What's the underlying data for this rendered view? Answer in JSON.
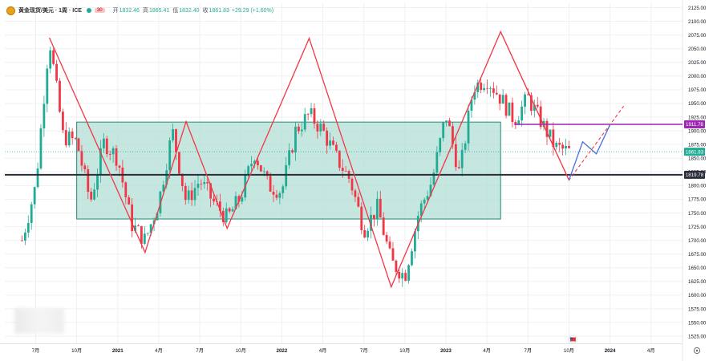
{
  "legend": {
    "symbol_icon": "gold-coin-icon",
    "title": "黄金现货/美元 · 1周 · ICE",
    "badge": "30",
    "open_label": "开",
    "open_value": "1832.46",
    "high_label": "高",
    "high_value": "1865.41",
    "low_label": "低",
    "low_value": "1832.40",
    "close_label": "收",
    "close_value": "1861.83",
    "change": "+29.29 (+1.60%)"
  },
  "colors": {
    "up": "#22ab94",
    "down": "#f23645",
    "zigzag": "#f23645",
    "box_fill": "#b2dfd6",
    "box_stroke": "#1e8c77",
    "purple": "#9c27b0",
    "dark_line": "#2a2e39",
    "projection": "#4a6ee0"
  },
  "chart_data": {
    "type": "candlestick",
    "symbol": "黄金现货/美元",
    "timeframe": "1周",
    "y_ticks": [
      "2125.00",
      "2100.00",
      "2075.00",
      "2050.00",
      "2025.00",
      "2000.00",
      "1975.00",
      "1950.00",
      "1925.00",
      "1900.00",
      "1875.00",
      "1850.00",
      "1825.00",
      "1800.00",
      "1775.00",
      "1750.00",
      "1725.00",
      "1700.00",
      "1675.00",
      "1650.00",
      "1625.00",
      "1600.00",
      "1575.00",
      "1550.00",
      "1525.00"
    ],
    "x_ticks": [
      "7月",
      "10月",
      "2021",
      "4月",
      "7月",
      "10月",
      "2022",
      "4月",
      "7月",
      "10月",
      "2023",
      "4月",
      "7月",
      "10月",
      "2024",
      "4月"
    ],
    "price_labels": {
      "purple": "1911.78",
      "current": "1861.83",
      "dark": "1819.78"
    },
    "levels": {
      "purple": 1911.78,
      "current": 1861.83,
      "dark": 1819.78
    },
    "range_box": {
      "start": "2020-10",
      "end": "2023-05",
      "top": 1916,
      "bottom": 1739
    },
    "zigzag": [
      {
        "x": "2020-08",
        "y": 2070
      },
      {
        "x": "2021-03",
        "y": 1678
      },
      {
        "x": "2021-06",
        "y": 1917
      },
      {
        "x": "2021-09",
        "y": 1722
      },
      {
        "x": "2022-03",
        "y": 2069
      },
      {
        "x": "2022-09",
        "y": 1615
      },
      {
        "x": "2023-05",
        "y": 2081
      },
      {
        "x": "2023-10",
        "y": 1810
      }
    ],
    "projection_dashed": [
      {
        "x": "2023-05",
        "y": 2081
      },
      {
        "x": "2023-10",
        "y": 1810
      },
      {
        "x": "2024-02",
        "y": 1945
      }
    ],
    "projection_solid": [
      {
        "x": "2023-10",
        "y": 1810
      },
      {
        "x": "2023-11",
        "y": 1880
      },
      {
        "x": "2023-12",
        "y": 1858
      },
      {
        "x": "2024-01",
        "y": 1911
      }
    ],
    "candles_path": [
      [
        "2020-06",
        1700
      ],
      [
        "2020-07",
        1800
      ],
      [
        "2020-08",
        2070
      ],
      [
        "2020-09",
        1890
      ],
      [
        "2020-10",
        1880
      ],
      [
        "2020-11",
        1770
      ],
      [
        "2020-12",
        1880
      ],
      [
        "2021-01",
        1850
      ],
      [
        "2021-02",
        1730
      ],
      [
        "2021-03",
        1700
      ],
      [
        "2021-04",
        1770
      ],
      [
        "2021-05",
        1900
      ],
      [
        "2021-06",
        1770
      ],
      [
        "2021-07",
        1810
      ],
      [
        "2021-08",
        1770
      ],
      [
        "2021-09",
        1740
      ],
      [
        "2021-10",
        1780
      ],
      [
        "2021-11",
        1860
      ],
      [
        "2021-12",
        1800
      ],
      [
        "2022-01",
        1790
      ],
      [
        "2022-02",
        1900
      ],
      [
        "2022-03",
        1930
      ],
      [
        "2022-04",
        1900
      ],
      [
        "2022-05",
        1850
      ],
      [
        "2022-06",
        1810
      ],
      [
        "2022-07",
        1720
      ],
      [
        "2022-08",
        1760
      ],
      [
        "2022-09",
        1660
      ],
      [
        "2022-10",
        1635
      ],
      [
        "2022-11",
        1750
      ],
      [
        "2022-12",
        1810
      ],
      [
        "2023-01",
        1930
      ],
      [
        "2023-02",
        1820
      ],
      [
        "2023-03",
        1980
      ],
      [
        "2023-04",
        1995
      ],
      [
        "2023-05",
        1960
      ],
      [
        "2023-06",
        1920
      ],
      [
        "2023-07",
        1960
      ],
      [
        "2023-08",
        1915
      ],
      [
        "2023-09",
        1870
      ],
      [
        "2023-10",
        1862
      ]
    ]
  }
}
